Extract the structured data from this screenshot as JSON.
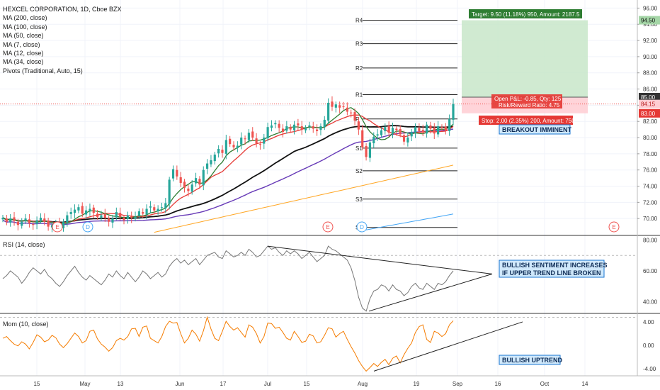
{
  "legend": {
    "title": "HEXCEL CORPORATION, 1D, Cboe BZX",
    "studies": [
      "MA (200, close)",
      "MA (100, close)",
      "MA (50, close)",
      "MA (7, close)",
      "MA (12, close)",
      "MA (34, close)",
      "Pivots (Traditional, Auto, 15)"
    ]
  },
  "rsi_label": "RSI (14, close)",
  "mom_label": "Mom (10, close)",
  "colors": {
    "up": "#26a69a",
    "down": "#ef5350",
    "ma7": "#2e7d32",
    "ma12": "#e53935",
    "ma34": "#111111",
    "ma50": "#673ab7",
    "ma100": "#ffa726",
    "ma200": "#42a5f5",
    "rsi": "#777777",
    "mom": "#f57c00",
    "target": "#c8e6c9",
    "stop": "#ffcdd2"
  },
  "chart_data": [
    {
      "type": "candlestick",
      "title": "HEXCEL CORPORATION, 1D, Cboe BZX",
      "ylim": [
        68,
        97
      ],
      "y_ticks": [
        "70.00",
        "72.00",
        "74.00",
        "76.00",
        "78.00",
        "80.00",
        "82.00",
        "84.00",
        "86.00",
        "88.00",
        "90.00",
        "92.00",
        "94.00",
        "96.00"
      ],
      "x_ticks": [
        "15",
        "May",
        "13",
        "Jun",
        "17",
        "Jul",
        "15",
        "Aug",
        "19",
        "Sep",
        "16",
        "Oct",
        "14"
      ],
      "price_labels": {
        "current": "84.15",
        "target_level": "94.50",
        "entry": "85.00",
        "stop_level": "83.00"
      },
      "pivots": [
        {
          "name": "R4",
          "value": 94.5
        },
        {
          "name": "R3",
          "value": 91.6
        },
        {
          "name": "R2",
          "value": 88.6
        },
        {
          "name": "R1",
          "value": 85.3
        },
        {
          "name": "P",
          "value": 82.3
        },
        {
          "name": "S1",
          "value": 78.7
        },
        {
          "name": "S2",
          "value": 75.9
        },
        {
          "name": "S3",
          "value": 72.4
        },
        {
          "name": "S",
          "value": 68.9
        }
      ],
      "position": {
        "target_label": "Target: 9.50 (11.18%) 950, Amount: 2187.5",
        "open_pnl": "Open P&L: -0.85, Qty: 125",
        "risk_reward": "Risk/Reward Ratio: 4.75",
        "stop_label": "Stop: 2.00 (2.35%) 200, Amount: 750",
        "target_price": 94.5,
        "entry_price": 85.0,
        "stop_price": 83.0
      },
      "annotations": [
        "BREAKOUT IMMINENT"
      ],
      "events": [
        "E",
        "D",
        "E",
        "D",
        "E"
      ],
      "close_series": [
        70.1,
        69.6,
        70.0,
        69.7,
        69.2,
        69.6,
        70.0,
        69.4,
        69.2,
        69.8,
        70.1,
        69.6,
        69.0,
        69.2,
        69.3,
        68.9,
        69.6,
        70.4,
        70.8,
        71.1,
        71.4,
        70.6,
        71.0,
        71.2,
        70.7,
        70.2,
        70.4,
        70.1,
        69.6,
        70.0,
        70.8,
        70.2,
        69.8,
        70.4,
        70.1,
        70.2,
        70.9,
        70.6,
        71.2,
        71.5,
        71.0,
        71.2,
        71.4,
        71.9,
        74.8,
        76.1,
        75.2,
        74.4,
        73.8,
        73.4,
        74.2,
        75.0,
        74.2,
        76.0,
        76.8,
        77.2,
        77.9,
        78.6,
        78.1,
        79.7,
        79.2,
        78.8,
        79.0,
        80.0,
        79.8,
        80.6,
        80.0,
        79.3,
        79.1,
        80.0,
        81.3,
        81.5,
        81.8,
        81.2,
        80.7,
        81.4,
        81.0,
        81.6,
        81.5,
        81.0,
        81.2,
        81.5,
        81.1,
        80.8,
        81.4,
        82.2,
        84.3,
        83.8,
        84.1,
        83.7,
        83.8,
        83.2,
        83.0,
        82.1,
        81.0,
        78.8,
        77.6,
        79.4,
        80.1,
        80.4,
        80.9,
        81.3,
        80.6,
        81.2,
        80.9,
        80.4,
        79.5,
        80.0,
        80.7,
        81.3,
        80.8,
        80.6,
        81.6,
        81.1,
        80.5,
        81.4,
        81.2,
        80.9,
        82.3,
        84.15
      ],
      "rsi": {
        "ylim": [
          33,
          82
        ],
        "y_ticks": [
          "80.00",
          "60.00",
          "40.00"
        ],
        "trendlines": "upper trend line and rising support drawn",
        "annotation": [
          "BULLISH SENTIMENT INCREASES",
          "IF UPPER TREND LINE BROKEN"
        ],
        "values": [
          55,
          57,
          60,
          58,
          56,
          52,
          55,
          59,
          62,
          60,
          58,
          61,
          57,
          55,
          52,
          50,
          53,
          57,
          60,
          63,
          59,
          56,
          54,
          57,
          55,
          53,
          51,
          54,
          58,
          56,
          60,
          57,
          55,
          59,
          56,
          53,
          56,
          60,
          58,
          55,
          57,
          59,
          56,
          58,
          63,
          66,
          68,
          65,
          67,
          64,
          66,
          68,
          64,
          67,
          70,
          71,
          72,
          69,
          68,
          73,
          71,
          69,
          70,
          72,
          70,
          74,
          72,
          69,
          70,
          73,
          76,
          74,
          75,
          72,
          70,
          73,
          71,
          73,
          71,
          68,
          70,
          72,
          69,
          66,
          68,
          70,
          76,
          74,
          73,
          71,
          69,
          67,
          62,
          54,
          43,
          36,
          34,
          42,
          47,
          48,
          51,
          50,
          47,
          51,
          48,
          47,
          44,
          46,
          50,
          52,
          49,
          48,
          52,
          50,
          48,
          52,
          51,
          53,
          57,
          60
        ]
      },
      "momentum": {
        "ylim": [
          -5.2,
          5.2
        ],
        "y_ticks": [
          "4.00",
          "0.00",
          "-4.00"
        ],
        "annotation": "BULLISH UPTREND",
        "values": [
          1.2,
          1.5,
          0.8,
          0.2,
          -0.1,
          0.6,
          0.2,
          -0.6,
          0.5,
          1.8,
          1.4,
          0.6,
          0.9,
          1.7,
          1.3,
          0.2,
          -0.4,
          0.3,
          1.2,
          2.1,
          1.5,
          0.4,
          0.8,
          2.4,
          2.6,
          1.1,
          0.2,
          -0.3,
          -1.0,
          -0.4,
          0.8,
          1.2,
          0.9,
          1.5,
          2.8,
          2.9,
          1.5,
          3.1,
          3.3,
          1.2,
          0.8,
          0.4,
          1.5,
          3.2,
          4.1,
          3.8,
          3.9,
          2.0,
          0.4,
          1.2,
          2.6,
          1.9,
          0.7,
          2.5,
          4.8,
          2.8,
          1.2,
          0.8,
          2.4,
          4.1,
          3.2,
          2.6,
          3.0,
          2.2,
          1.4,
          3.5,
          3.1,
          2.0,
          0.4,
          1.5,
          3.8,
          3.7,
          2.9,
          3.1,
          2.2,
          1.2,
          0.9,
          2.4,
          1.5,
          0.5,
          0.7,
          1.9,
          1.6,
          0.4,
          0.6,
          1.7,
          3.0,
          2.8,
          1.4,
          2.0,
          2.4,
          1.0,
          -0.2,
          -1.3,
          -2.6,
          -3.6,
          -4.4,
          -3.8,
          -3.1,
          -3.6,
          -2.9,
          -2.4,
          -3.3,
          -2.2,
          -1.8,
          -3.0,
          -1.6,
          -0.5,
          0.4,
          2.2,
          3.2,
          3.5,
          1.0,
          0.5,
          2.4,
          2.1,
          1.5,
          2.0,
          3.5,
          4.2
        ]
      }
    }
  ]
}
